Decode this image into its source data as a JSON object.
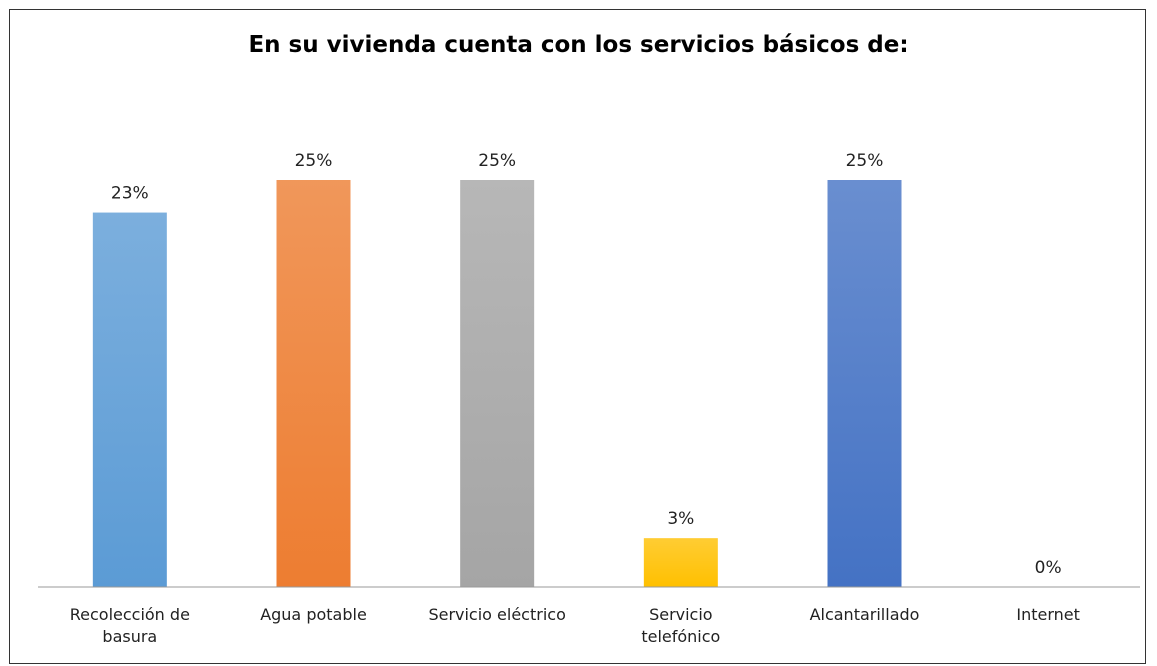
{
  "chart_data": {
    "type": "bar",
    "title": "En su vivienda cuenta con los servicios básicos de:",
    "categories": [
      "Recolección de basura",
      "Agua potable",
      "Servicio eléctrico",
      "Servicio telefónico",
      "Alcantarillado",
      "Internet"
    ],
    "values": [
      23,
      25,
      25,
      3,
      25,
      0
    ],
    "value_labels": [
      "23%",
      "25%",
      "25%",
      "3%",
      "25%",
      "0%"
    ],
    "colors": [
      "#5b9bd5",
      "#ed7d31",
      "#a5a5a5",
      "#ffc000",
      "#4472c4",
      "#70ad47"
    ]
  }
}
